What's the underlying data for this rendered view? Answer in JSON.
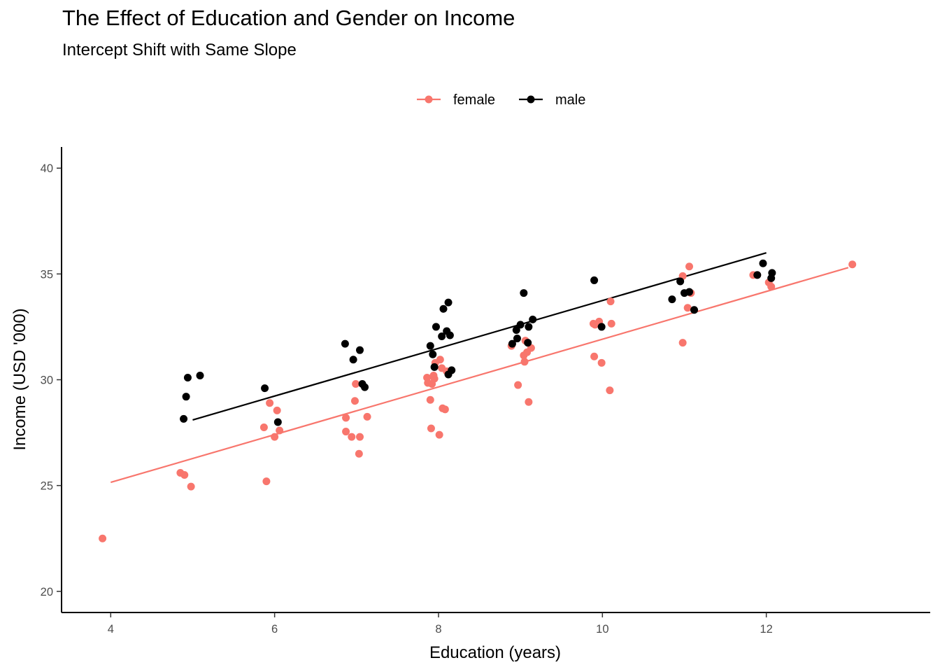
{
  "chart_data": {
    "type": "scatter",
    "title": "The Effect of Education and Gender on Income",
    "subtitle": "Intercept Shift with Same Slope",
    "xlabel": "Education (years)",
    "ylabel": "Income (USD '000)",
    "xlim": [
      3.4,
      14.0
    ],
    "ylim": [
      19.0,
      41.0
    ],
    "xticks": [
      4,
      6,
      8,
      10,
      12
    ],
    "yticks": [
      20,
      25,
      30,
      35,
      40
    ],
    "grid": false,
    "legend_position": "top",
    "series": [
      {
        "name": "female",
        "color": "#F8766D",
        "points": [
          [
            3.9,
            22.5
          ],
          [
            4.85,
            25.6
          ],
          [
            4.9,
            25.5
          ],
          [
            4.98,
            24.95
          ],
          [
            5.87,
            27.75
          ],
          [
            5.9,
            25.2
          ],
          [
            5.94,
            28.9
          ],
          [
            6.0,
            27.3
          ],
          [
            6.03,
            28.55
          ],
          [
            6.06,
            27.6
          ],
          [
            6.87,
            28.2
          ],
          [
            6.87,
            27.55
          ],
          [
            6.94,
            27.3
          ],
          [
            6.98,
            29.0
          ],
          [
            6.99,
            29.8
          ],
          [
            7.03,
            26.5
          ],
          [
            7.04,
            27.3
          ],
          [
            7.13,
            28.25
          ],
          [
            7.86,
            30.1
          ],
          [
            7.87,
            29.85
          ],
          [
            7.9,
            29.05
          ],
          [
            7.91,
            27.7
          ],
          [
            7.92,
            29.8
          ],
          [
            7.94,
            30.2
          ],
          [
            7.95,
            30.05
          ],
          [
            7.96,
            30.8
          ],
          [
            8.01,
            27.4
          ],
          [
            8.02,
            30.95
          ],
          [
            8.04,
            30.55
          ],
          [
            8.05,
            28.65
          ],
          [
            8.08,
            28.6
          ],
          [
            8.1,
            30.4
          ],
          [
            8.89,
            31.6
          ],
          [
            8.97,
            29.75
          ],
          [
            9.04,
            31.15
          ],
          [
            9.05,
            30.85
          ],
          [
            9.06,
            31.85
          ],
          [
            9.08,
            31.3
          ],
          [
            9.1,
            28.95
          ],
          [
            9.13,
            31.5
          ],
          [
            9.89,
            32.65
          ],
          [
            9.9,
            31.1
          ],
          [
            9.91,
            32.6
          ],
          [
            9.96,
            32.75
          ],
          [
            9.99,
            30.8
          ],
          [
            10.09,
            29.5
          ],
          [
            10.1,
            33.7
          ],
          [
            10.11,
            32.65
          ],
          [
            10.98,
            31.75
          ],
          [
            10.98,
            34.9
          ],
          [
            11.04,
            33.4
          ],
          [
            11.06,
            35.35
          ],
          [
            11.08,
            34.1
          ],
          [
            11.84,
            34.95
          ],
          [
            11.89,
            34.95
          ],
          [
            12.03,
            34.6
          ],
          [
            12.06,
            34.4
          ],
          [
            13.05,
            35.45
          ]
        ],
        "fit": [
          [
            4.0,
            25.15
          ],
          [
            13.0,
            35.3
          ]
        ]
      },
      {
        "name": "male",
        "color": "#000000",
        "points": [
          [
            4.89,
            28.15
          ],
          [
            4.92,
            29.2
          ],
          [
            4.94,
            30.1
          ],
          [
            5.09,
            30.2
          ],
          [
            5.88,
            29.6
          ],
          [
            6.04,
            28.0
          ],
          [
            6.86,
            31.7
          ],
          [
            6.96,
            30.95
          ],
          [
            7.04,
            31.4
          ],
          [
            7.07,
            29.8
          ],
          [
            7.1,
            29.65
          ],
          [
            7.9,
            31.6
          ],
          [
            7.93,
            31.2
          ],
          [
            7.95,
            30.6
          ],
          [
            7.97,
            32.5
          ],
          [
            8.04,
            32.05
          ],
          [
            8.06,
            33.35
          ],
          [
            8.1,
            32.3
          ],
          [
            8.12,
            30.25
          ],
          [
            8.12,
            33.65
          ],
          [
            8.14,
            32.1
          ],
          [
            8.16,
            30.45
          ],
          [
            8.9,
            31.7
          ],
          [
            8.95,
            32.35
          ],
          [
            8.96,
            31.95
          ],
          [
            9.0,
            32.6
          ],
          [
            9.04,
            34.1
          ],
          [
            9.09,
            31.75
          ],
          [
            9.1,
            32.5
          ],
          [
            9.15,
            32.85
          ],
          [
            9.9,
            34.7
          ],
          [
            9.99,
            32.5
          ],
          [
            10.85,
            33.8
          ],
          [
            10.95,
            34.65
          ],
          [
            11.0,
            34.1
          ],
          [
            11.06,
            34.15
          ],
          [
            11.12,
            33.3
          ],
          [
            11.89,
            34.95
          ],
          [
            11.96,
            35.5
          ],
          [
            12.06,
            34.8
          ],
          [
            12.07,
            35.05
          ]
        ],
        "fit": [
          [
            5.0,
            28.1
          ],
          [
            12.0,
            36.0
          ]
        ]
      }
    ]
  }
}
